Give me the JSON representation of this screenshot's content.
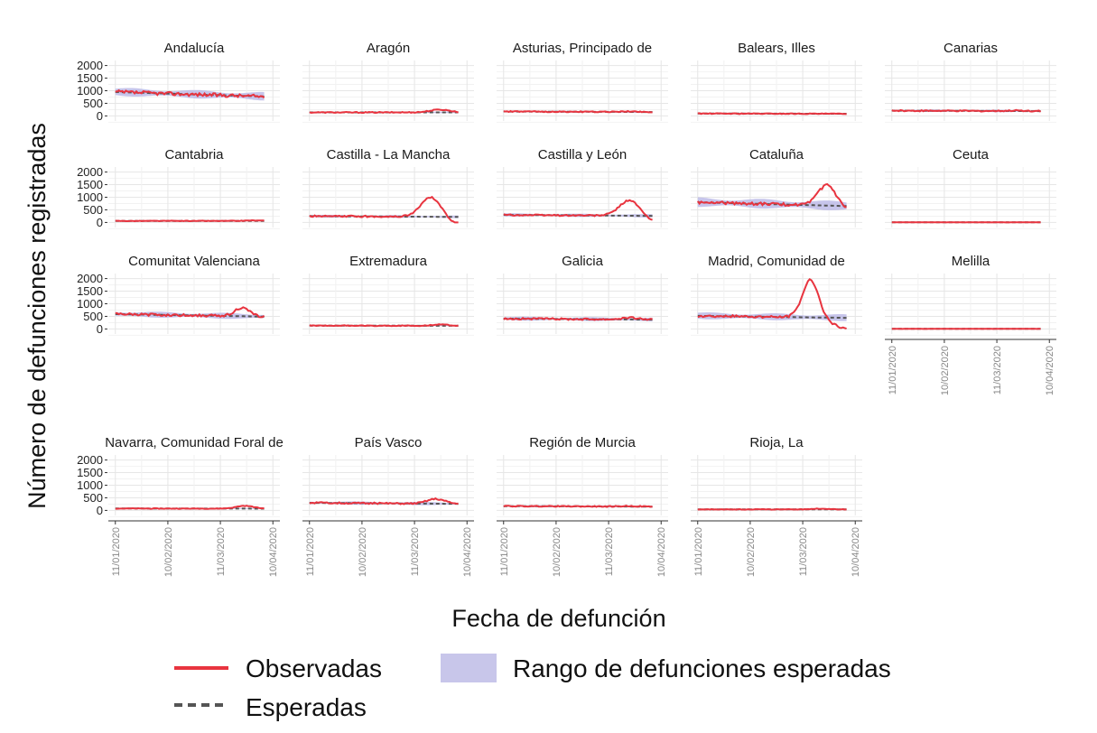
{
  "chart_data": {
    "type": "line",
    "ylabel": "Número de defunciones registradas",
    "xlabel": "Fecha de defunción",
    "yticks": [
      0,
      500,
      1000,
      1500,
      2000
    ],
    "ylim": [
      -200,
      2200
    ],
    "xticks": [
      "11/01/2020",
      "10/02/2020",
      "11/03/2020",
      "10/04/2020"
    ],
    "xlim_days_from_first_tick": [
      -4,
      94
    ],
    "date_range": [
      "11/01/2020",
      "05/04/2020"
    ],
    "legend": {
      "observed": "Observadas",
      "expected": "Esperadas",
      "range": "Rango de defunciones esperadas"
    },
    "colors": {
      "observed": "#e8343f",
      "expected": "#555555",
      "range": "#b9b6e6"
    },
    "panels": [
      {
        "name": "Andalucía",
        "base": 950,
        "trend": -180,
        "range_width": 280,
        "noise": 70,
        "peak": 0,
        "peak_pos": 0.8,
        "peak_width": 0.08,
        "end_drop": 0
      },
      {
        "name": "Aragón",
        "base": 140,
        "trend": 0,
        "range_width": 50,
        "noise": 20,
        "peak": 110,
        "peak_pos": 0.88,
        "peak_width": 0.07,
        "end_drop": 0.1
      },
      {
        "name": "Asturias, Principado de",
        "base": 175,
        "trend": -20,
        "range_width": 60,
        "noise": 20,
        "peak": 20,
        "peak_pos": 0.85,
        "peak_width": 0.06,
        "end_drop": 0
      },
      {
        "name": "Balears, Illes",
        "base": 95,
        "trend": -10,
        "range_width": 40,
        "noise": 15,
        "peak": 0,
        "peak_pos": 0.8,
        "peak_width": 0.05,
        "end_drop": 0
      },
      {
        "name": "Canarias",
        "base": 210,
        "trend": -20,
        "range_width": 80,
        "noise": 25,
        "peak": 20,
        "peak_pos": 0.85,
        "peak_width": 0.06,
        "end_drop": 0
      },
      {
        "name": "Cantabria",
        "base": 60,
        "trend": 0,
        "range_width": 30,
        "noise": 12,
        "peak": 20,
        "peak_pos": 0.92,
        "peak_width": 0.05,
        "end_drop": 0
      },
      {
        "name": "Castilla - La Mancha",
        "base": 250,
        "trend": -30,
        "range_width": 90,
        "noise": 30,
        "peak": 780,
        "peak_pos": 0.82,
        "peak_width": 0.07,
        "end_drop": 0.45
      },
      {
        "name": "Castilla y León",
        "base": 300,
        "trend": -40,
        "range_width": 110,
        "noise": 30,
        "peak": 620,
        "peak_pos": 0.85,
        "peak_width": 0.07,
        "end_drop": 0.4
      },
      {
        "name": "Cataluña",
        "base": 800,
        "trend": -150,
        "range_width": 320,
        "noise": 55,
        "peak": 820,
        "peak_pos": 0.87,
        "peak_width": 0.06,
        "end_drop": 0.2
      },
      {
        "name": "Ceuta",
        "base": 5,
        "trend": 0,
        "range_width": 6,
        "noise": 3,
        "peak": 0,
        "peak_pos": 0.8,
        "peak_width": 0.05,
        "end_drop": 0
      },
      {
        "name": "Comunitat Valenciana",
        "base": 590,
        "trend": -100,
        "range_width": 200,
        "noise": 45,
        "peak": 330,
        "peak_pos": 0.85,
        "peak_width": 0.05,
        "end_drop": 0
      },
      {
        "name": "Extremadura",
        "base": 135,
        "trend": -10,
        "range_width": 45,
        "noise": 15,
        "peak": 50,
        "peak_pos": 0.88,
        "peak_width": 0.06,
        "end_drop": 0
      },
      {
        "name": "Galicia",
        "base": 410,
        "trend": -40,
        "range_width": 130,
        "noise": 35,
        "peak": 70,
        "peak_pos": 0.85,
        "peak_width": 0.06,
        "end_drop": 0
      },
      {
        "name": "Madrid, Comunidad de",
        "base": 520,
        "trend": -80,
        "range_width": 230,
        "noise": 45,
        "peak": 1500,
        "peak_pos": 0.76,
        "peak_width": 0.055,
        "end_drop": 0.3
      },
      {
        "name": "Melilla",
        "base": 5,
        "trend": 0,
        "range_width": 6,
        "noise": 3,
        "peak": 0,
        "peak_pos": 0.8,
        "peak_width": 0.05,
        "end_drop": 0
      },
      {
        "name": "Navarra, Comunidad Foral de",
        "base": 75,
        "trend": -5,
        "range_width": 30,
        "noise": 12,
        "peak": 110,
        "peak_pos": 0.87,
        "peak_width": 0.06,
        "end_drop": 0
      },
      {
        "name": "País Vasco",
        "base": 300,
        "trend": -40,
        "range_width": 110,
        "noise": 30,
        "peak": 190,
        "peak_pos": 0.85,
        "peak_width": 0.06,
        "end_drop": 0
      },
      {
        "name": "Región de Murcia",
        "base": 170,
        "trend": -20,
        "range_width": 60,
        "noise": 20,
        "peak": 20,
        "peak_pos": 0.85,
        "peak_width": 0.06,
        "end_drop": 0
      },
      {
        "name": "Rioja, La",
        "base": 40,
        "trend": 0,
        "range_width": 20,
        "noise": 10,
        "peak": 30,
        "peak_pos": 0.82,
        "peak_width": 0.05,
        "end_drop": 0
      }
    ]
  }
}
